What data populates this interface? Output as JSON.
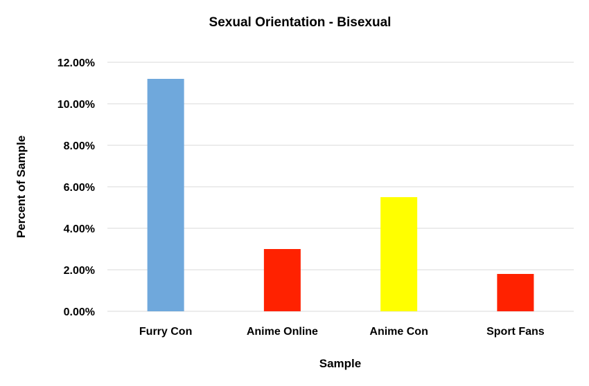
{
  "chart_data": {
    "type": "bar",
    "title": "Sexual Orientation - Bisexual",
    "xlabel": "Sample",
    "ylabel": "Percent of Sample",
    "categories": [
      "Furry Con",
      "Anime Online",
      "Anime Con",
      "Sport Fans"
    ],
    "values": [
      11.2,
      3.0,
      5.5,
      1.8
    ],
    "bar_colors": [
      "#6fa8dc",
      "#ff2200",
      "#ffff00",
      "#ff2200"
    ],
    "ylim": [
      0,
      12
    ],
    "yticks": [
      0,
      2,
      4,
      6,
      8,
      10,
      12
    ],
    "ytick_labels": [
      "0.00%",
      "2.00%",
      "4.00%",
      "6.00%",
      "8.00%",
      "10.00%",
      "12.00%"
    ],
    "grid": true,
    "legend": "none"
  }
}
